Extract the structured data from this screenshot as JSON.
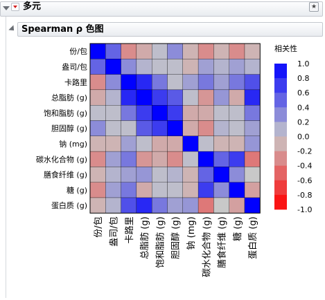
{
  "report": {
    "title": "多元",
    "pin_icon": "pin-icon",
    "menu_icon": "red-triangle-menu-icon"
  },
  "section": {
    "title": "Spearman ρ 色图"
  },
  "colors": {
    "negative_strong": "#ff0000",
    "neutral": "#c8c8c8",
    "positive_strong": "#0000ff",
    "grid_line": "#000000"
  },
  "chart_data": {
    "type": "heatmap",
    "variables": [
      "份/包",
      "盎司/包",
      "卡路里",
      "总脂肪 (g)",
      "饱和脂肪 (g)",
      "胆固醇 (g)",
      "钠 (mg)",
      "碳水化合物 (g)",
      "膳食纤维 (g)",
      "糖 (g)",
      "蛋白质 (g)"
    ],
    "matrix": [
      [
        1.0,
        0.5,
        -0.3,
        -0.15,
        0.05,
        0.3,
        -0.1,
        -0.3,
        -0.1,
        -0.3,
        -0.1
      ],
      [
        0.5,
        1.0,
        0.3,
        0.1,
        0.05,
        0.05,
        -0.1,
        0.2,
        0.1,
        0.2,
        0.1
      ],
      [
        -0.3,
        0.3,
        1.0,
        0.8,
        0.4,
        0.05,
        0.2,
        0.4,
        0.2,
        0.4,
        0.6
      ],
      [
        -0.15,
        0.1,
        0.8,
        1.0,
        0.7,
        0.55,
        0.05,
        -0.25,
        0.25,
        -0.15,
        0.8
      ],
      [
        0.05,
        0.05,
        0.4,
        0.7,
        1.0,
        0.7,
        -0.15,
        -0.15,
        0.05,
        0.05,
        0.4
      ],
      [
        0.3,
        0.05,
        0.05,
        0.55,
        0.7,
        1.0,
        -0.15,
        -0.3,
        0.1,
        0.05,
        0.2
      ],
      [
        -0.1,
        -0.1,
        0.2,
        0.05,
        -0.15,
        -0.15,
        1.0,
        0.05,
        -0.1,
        -0.1,
        0.25
      ],
      [
        -0.3,
        0.2,
        0.4,
        -0.25,
        -0.15,
        -0.3,
        0.05,
        1.0,
        0.5,
        0.7,
        -0.4
      ],
      [
        -0.1,
        0.1,
        0.2,
        0.25,
        0.05,
        0.1,
        -0.1,
        0.5,
        1.0,
        0.3,
        0.0
      ],
      [
        -0.3,
        0.2,
        0.4,
        -0.15,
        0.05,
        0.05,
        -0.1,
        0.7,
        0.3,
        1.0,
        -0.2
      ],
      [
        -0.1,
        0.1,
        0.6,
        0.8,
        0.4,
        0.2,
        0.25,
        -0.4,
        0.0,
        -0.2,
        1.0
      ]
    ],
    "legend": {
      "title": "相关性",
      "ticks": [
        "1.0",
        "0.8",
        "0.6",
        "0.4",
        "0.2",
        "0.0",
        "-0.2",
        "-0.4",
        "-0.6",
        "-0.8",
        "-1.0"
      ],
      "range": [
        -1,
        1
      ]
    }
  }
}
